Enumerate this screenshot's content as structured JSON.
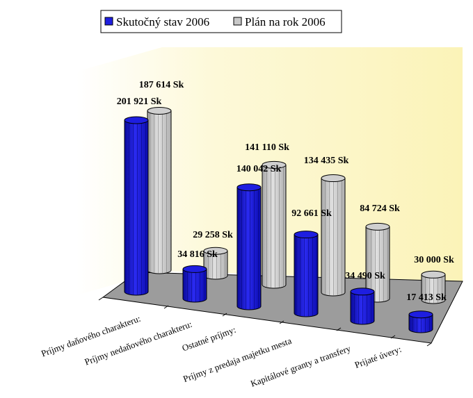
{
  "chart_data": {
    "type": "bar",
    "style": "3d-cylinder",
    "categories": [
      "Príjmy daňového charakteru:",
      "Príjmy nedaňového charakteru:",
      "Ostatné príjmy:",
      "Príjmy z predaja majetku mesta",
      "Kapitálové granty a transfery",
      "Prijaté úvery:"
    ],
    "series": [
      {
        "name": "Skutočný stav 2006",
        "color": "#1e1ee0",
        "values": [
          201921,
          34816,
          140042,
          92661,
          34490,
          17413
        ],
        "labels": [
          "201 921 Sk",
          "34 816 Sk",
          "140 042 Sk",
          "92 661 Sk",
          "34 490 Sk",
          "17 413 Sk"
        ]
      },
      {
        "name": "Plán na rok 2006",
        "color": "#c8c8c8",
        "values": [
          187614,
          29258,
          141110,
          134435,
          84724,
          30000
        ],
        "labels": [
          "187 614 Sk",
          "29 258 Sk",
          "141 110 Sk",
          "134 435 Sk",
          "84 724 Sk",
          "30 000 Sk"
        ]
      }
    ],
    "legend": "top",
    "grid": false,
    "title": "",
    "xlabel": "",
    "ylabel": ""
  }
}
